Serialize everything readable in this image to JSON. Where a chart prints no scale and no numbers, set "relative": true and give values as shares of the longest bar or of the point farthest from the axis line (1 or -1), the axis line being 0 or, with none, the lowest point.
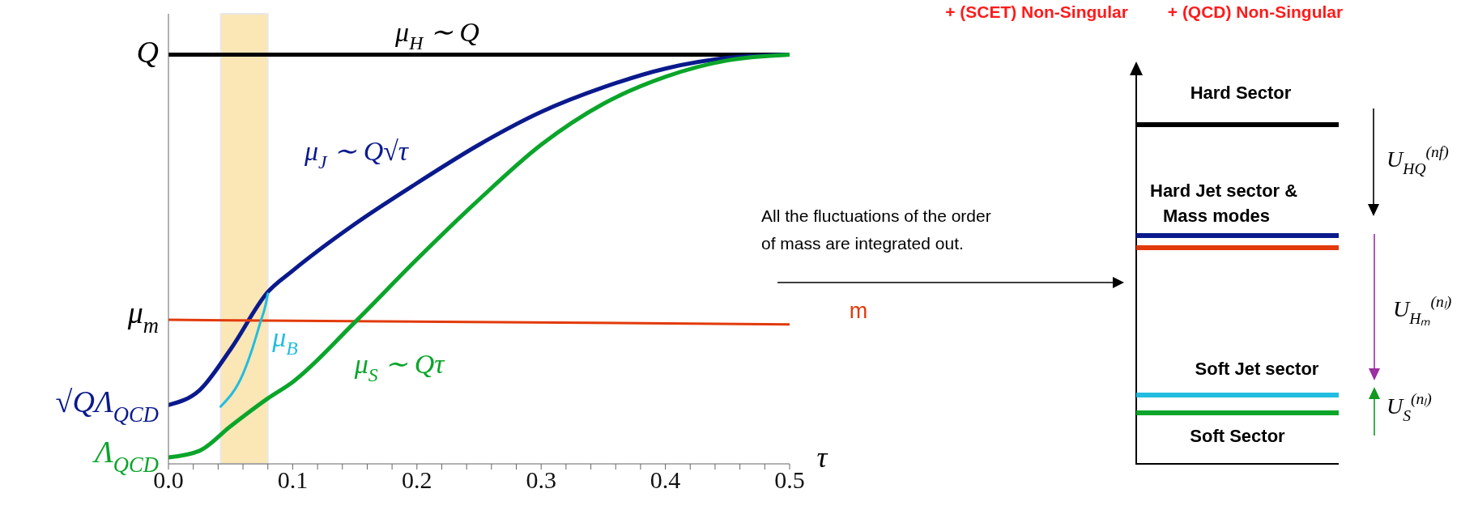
{
  "chart_data": [
    {
      "type": "line",
      "relative": true,
      "xlabel": "τ",
      "xlim": [
        0,
        0.5
      ],
      "xticks": [
        {
          "value": 0,
          "label": "0.0"
        },
        {
          "value": 0.02,
          "label": null
        },
        {
          "value": 0.04,
          "label": null
        },
        {
          "value": 0.06,
          "label": null
        },
        {
          "value": 0.08,
          "label": null
        },
        {
          "value": 0.1,
          "label": "0.1"
        },
        {
          "value": 0.12,
          "label": null
        },
        {
          "value": 0.14,
          "label": null
        },
        {
          "value": 0.16,
          "label": null
        },
        {
          "value": 0.18,
          "label": null
        },
        {
          "value": 0.2,
          "label": "0.2"
        },
        {
          "value": 0.22,
          "label": null
        },
        {
          "value": 0.24,
          "label": null
        },
        {
          "value": 0.26,
          "label": null
        },
        {
          "value": 0.28,
          "label": null
        },
        {
          "value": 0.3,
          "label": "0.3"
        },
        {
          "value": 0.32,
          "label": null
        },
        {
          "value": 0.34,
          "label": null
        },
        {
          "value": 0.36,
          "label": null
        },
        {
          "value": 0.38,
          "label": null
        },
        {
          "value": 0.4,
          "label": "0.4"
        },
        {
          "value": 0.42,
          "label": null
        },
        {
          "value": 0.44,
          "label": null
        },
        {
          "value": 0.46,
          "label": null
        },
        {
          "value": 0.48,
          "label": null
        },
        {
          "value": 0.5,
          "label": "0.5"
        }
      ],
      "bands": [
        {
          "axis": "x",
          "from": 0.042,
          "to": 0.08,
          "color": "#fbe3ae"
        }
      ],
      "series": [
        {
          "name": "μ$_{H}$ ∼ Q",
          "color": "#000000",
          "x": [
            0,
            0.5
          ],
          "values": [
            1,
            1
          ]
        },
        {
          "name": "μ$_{J}$ ∼ Q√τ",
          "color": "#0a1a8c",
          "x": [
            0,
            0.025,
            0.05,
            0.08,
            0.1,
            0.15,
            0.2,
            0.25,
            0.3,
            0.35,
            0.4,
            0.45,
            0.5
          ],
          "values": [
            0.144,
            0.18,
            0.28,
            0.42,
            0.472,
            0.586,
            0.686,
            0.78,
            0.86,
            0.92,
            0.966,
            0.992,
            1
          ]
        },
        {
          "color": "#e23a0a",
          "x": [
            0,
            0.5
          ],
          "values": [
            0.352,
            0.341
          ]
        },
        {
          "name": "μ$_{B}$",
          "color": "#22bde0",
          "x": [
            0.042,
            0.06,
            0.068,
            0.074,
            0.078,
            0.08
          ],
          "values": [
            0.14,
            0.22,
            0.286,
            0.346,
            0.386,
            0.416
          ]
        },
        {
          "name": "μ$_{S}$ ∼ Qτ",
          "color": "#0aa52a",
          "x": [
            0,
            0.025,
            0.05,
            0.08,
            0.1,
            0.15,
            0.2,
            0.25,
            0.3,
            0.35,
            0.4,
            0.45,
            0.5
          ],
          "values": [
            0.016,
            0.032,
            0.092,
            0.16,
            0.2,
            0.346,
            0.5,
            0.646,
            0.78,
            0.88,
            0.946,
            0.986,
            1
          ]
        }
      ],
      "annotations": [
        "Q",
        "μ$_{m}$",
        "√QΛ$_{QCD}$",
        "Λ$_{QCD}$"
      ]
    },
    {
      "type": "other",
      "annotations": [
        "+ (SCET) Non-Singular",
        "+ (QCD) Non-Singular",
        "All the fluctuations of the order of mass are integrated out.",
        "m",
        "Hard Sector",
        "Hard Jet sector & Mass modes",
        "Soft Jet sector",
        "Soft Sector",
        "U$_{HQ}$$^{(nf)}$",
        "U$_{Hₘ}$$^{(nₗ)}$",
        "U$_{S}$$^{(nₗ)}$"
      ]
    }
  ]
}
